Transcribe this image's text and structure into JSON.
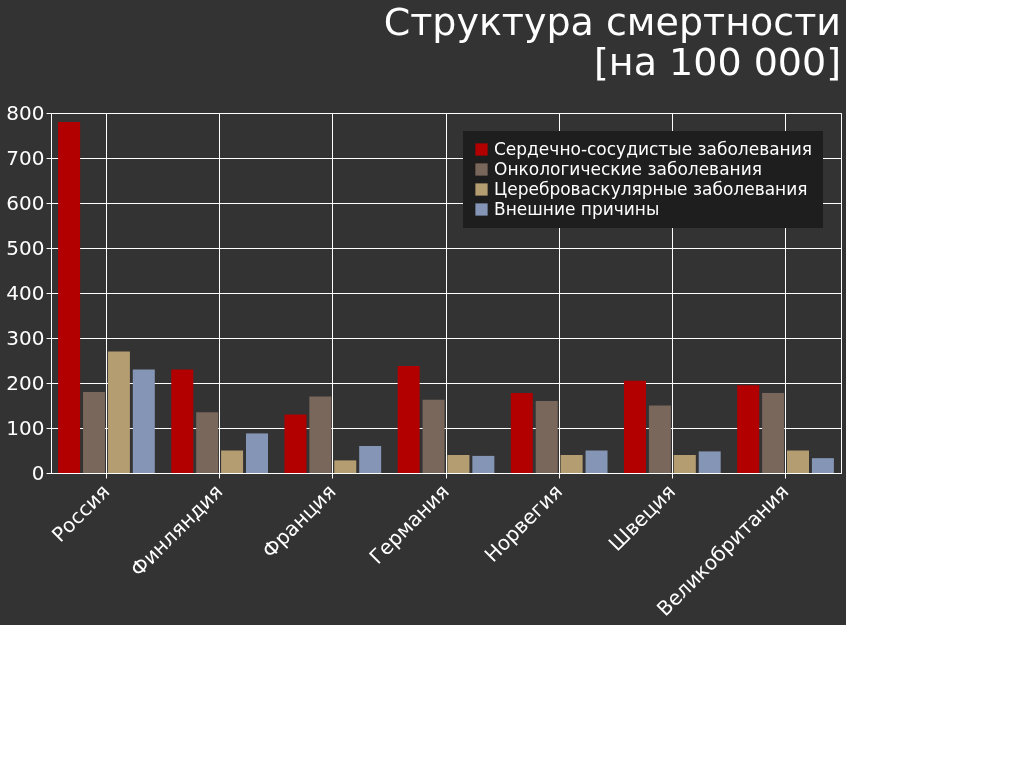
{
  "chart_data": {
    "type": "bar",
    "title": [
      "Структура смертности",
      "[на 100 000]"
    ],
    "categories": [
      "Россия",
      "Финляндия",
      "Франция",
      "Германия",
      "Норвегия",
      "Швеция",
      "Великобритания"
    ],
    "series": [
      {
        "name": "Сердечно-сосудистые заболевания",
        "color": "#b20000",
        "values": [
          780,
          230,
          130,
          238,
          178,
          205,
          195
        ]
      },
      {
        "name": "Онкологические заболевания",
        "color": "#7a675c",
        "values": [
          180,
          135,
          170,
          163,
          160,
          150,
          178
        ]
      },
      {
        "name": "Цереброваскулярные заболевания",
        "color": "#b59d72",
        "values": [
          270,
          50,
          28,
          40,
          40,
          40,
          50
        ]
      },
      {
        "name": "Внешние причины",
        "color": "#8595b5",
        "values": [
          230,
          88,
          60,
          38,
          50,
          48,
          33
        ]
      }
    ],
    "ylim": [
      0,
      800
    ],
    "yticks": [
      0,
      100,
      200,
      300,
      400,
      500,
      600,
      700,
      800
    ],
    "grid": true,
    "legend": "top right"
  }
}
